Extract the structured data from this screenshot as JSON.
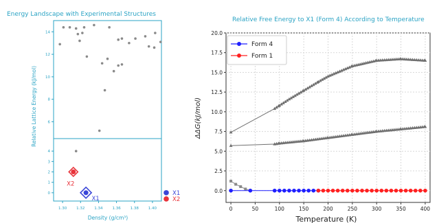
{
  "chart_data": [
    {
      "type": "scatter",
      "title": "Energy Landscape with Experimental Structures",
      "xlabel": "Density (g/cm³)",
      "ylabel": "Relative Lattice Energy (kJ/mol)",
      "accent_color": "#2aa3c4",
      "xlim": [
        1.29,
        1.41
      ],
      "upper_ylim": [
        4.5,
        15.0
      ],
      "lower_ylim": [
        -0.8,
        5.2
      ],
      "x_ticks": [
        "1.30",
        "1.32",
        "1.34",
        "1.36",
        "1.38",
        "1.40"
      ],
      "upper_y_ticks": [
        "6",
        "8",
        "10",
        "12",
        "14"
      ],
      "lower_y_ticks": [
        "0",
        "1",
        "2",
        "3",
        "4"
      ],
      "upper_points": [
        {
          "x": 1.301,
          "y": 14.4
        },
        {
          "x": 1.308,
          "y": 14.4
        },
        {
          "x": 1.297,
          "y": 12.9
        },
        {
          "x": 1.315,
          "y": 14.3
        },
        {
          "x": 1.322,
          "y": 13.9
        },
        {
          "x": 1.324,
          "y": 14.4
        },
        {
          "x": 1.317,
          "y": 13.8
        },
        {
          "x": 1.319,
          "y": 13.2
        },
        {
          "x": 1.335,
          "y": 14.6
        },
        {
          "x": 1.352,
          "y": 14.4
        },
        {
          "x": 1.362,
          "y": 13.3
        },
        {
          "x": 1.366,
          "y": 13.4
        },
        {
          "x": 1.374,
          "y": 13.0
        },
        {
          "x": 1.381,
          "y": 13.4
        },
        {
          "x": 1.392,
          "y": 13.6
        },
        {
          "x": 1.396,
          "y": 12.7
        },
        {
          "x": 1.402,
          "y": 12.6
        },
        {
          "x": 1.403,
          "y": 13.9
        },
        {
          "x": 1.409,
          "y": 13.1
        },
        {
          "x": 1.327,
          "y": 11.8
        },
        {
          "x": 1.35,
          "y": 11.6
        },
        {
          "x": 1.344,
          "y": 11.2
        },
        {
          "x": 1.357,
          "y": 10.5
        },
        {
          "x": 1.362,
          "y": 11.0
        },
        {
          "x": 1.366,
          "y": 11.1
        },
        {
          "x": 1.347,
          "y": 8.8
        },
        {
          "x": 1.341,
          "y": 5.2
        }
      ],
      "lower_points": [
        {
          "x": 1.315,
          "y": 4.0
        }
      ],
      "structures": [
        {
          "name": "X2",
          "x": 1.312,
          "y": 2.0,
          "color": "#e8333a"
        },
        {
          "name": "X1",
          "x": 1.326,
          "y": 0.0,
          "color": "#3a46d8"
        }
      ],
      "side_markers": [
        {
          "name": "X1",
          "y": 0.0,
          "color": "#3a46d8"
        },
        {
          "name": "X2",
          "y": -0.6,
          "color": "#e8333a"
        }
      ]
    },
    {
      "type": "line",
      "title": "Relative Free Energy to X1 (Form 4) According to Temperature",
      "xlabel": "Temperature (K)",
      "ylabel": "ΔΔG(kJ/mol)",
      "xlim": [
        -10,
        410
      ],
      "ylim": [
        -1.5,
        20.0
      ],
      "x_ticks": [
        0,
        50,
        100,
        150,
        200,
        250,
        300,
        350,
        400
      ],
      "y_ticks": [
        "0.0",
        "2.5",
        "5.0",
        "7.5",
        "10.0",
        "12.5",
        "15.0",
        "17.5",
        "20.0"
      ],
      "legend": [
        "Form 4",
        "Form 1"
      ],
      "legend_position": "upper-left",
      "grid": true,
      "series": [
        {
          "name": "Form 4",
          "color": "#1f1fff",
          "marker": "circle",
          "x": [
            0,
            40,
            90,
            100,
            110,
            120,
            130,
            140,
            150,
            160,
            170,
            180
          ],
          "y": [
            0,
            0,
            0,
            0,
            0,
            0,
            0,
            0,
            0,
            0,
            0,
            0
          ]
        },
        {
          "name": "Form 1",
          "color": "#ff2020",
          "marker": "circle",
          "x": [
            180,
            190,
            200,
            210,
            220,
            230,
            240,
            250,
            260,
            270,
            280,
            290,
            300,
            310,
            320,
            330,
            340,
            350,
            360,
            370,
            380,
            390,
            400
          ],
          "y": [
            0,
            0,
            0,
            0,
            0,
            0,
            0,
            0,
            0,
            0,
            0,
            0,
            0,
            0,
            0,
            0,
            0,
            0,
            0,
            0,
            0,
            0,
            0
          ]
        },
        {
          "color": "#707070",
          "marker": "triangle",
          "x": [
            0,
            90,
            100,
            120,
            150,
            180,
            200,
            250,
            300,
            350,
            400
          ],
          "y": [
            7.4,
            10.4,
            10.8,
            11.6,
            12.7,
            13.8,
            14.5,
            15.8,
            16.5,
            16.7,
            16.5
          ]
        },
        {
          "color": "#707070",
          "marker": "triangle",
          "x": [
            0,
            90,
            100,
            150,
            200,
            250,
            300,
            350,
            400
          ],
          "y": [
            5.7,
            5.9,
            6.0,
            6.3,
            6.7,
            7.1,
            7.5,
            7.8,
            8.1
          ]
        },
        {
          "color": "#8a8a8a",
          "marker": "square",
          "x": [
            0,
            10,
            20,
            30,
            40
          ],
          "y": [
            1.2,
            0.8,
            0.5,
            0.2,
            0.0
          ]
        }
      ]
    }
  ]
}
